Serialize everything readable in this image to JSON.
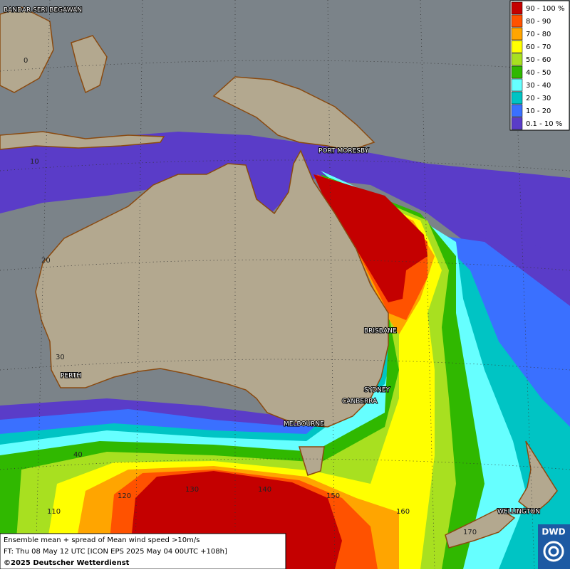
{
  "legend": {
    "entries": [
      {
        "label": "90 - 100 %",
        "color": "#c40000"
      },
      {
        "label": "80 - 90",
        "color": "#ff5200"
      },
      {
        "label": "70 - 80",
        "color": "#ffa500"
      },
      {
        "label": "60 - 70",
        "color": "#ffff00"
      },
      {
        "label": "50 - 60",
        "color": "#a8e020"
      },
      {
        "label": "40 - 50",
        "color": "#30b800"
      },
      {
        "label": "30 - 40",
        "color": "#66ffff"
      },
      {
        "label": "20 - 30",
        "color": "#00c4c4"
      },
      {
        "label": "10 - 20",
        "color": "#3a70ff"
      },
      {
        "label": "0.1 - 10 %",
        "color": "#5a3cc8"
      }
    ]
  },
  "cities": [
    "BANDAR SERI BEGAWAN",
    "PORT MORESBY",
    "BRISBANE",
    "SYDNEY",
    "CANBERRA",
    "MELBOURNE",
    "PERTH",
    "WELLINGTON"
  ],
  "grid_labels": [
    "0",
    "10",
    "20",
    "30",
    "40",
    "110",
    "120",
    "130",
    "140",
    "150",
    "160",
    "170"
  ],
  "footer": {
    "line1": "Ensemble mean + spread of Mean wind speed >10m/s",
    "line2": "FT: Thu 08 May 12 UTC [ICON EPS 2025 May 04 00UTC +108h]",
    "line3": "©2025 Deutscher Wetterdienst"
  },
  "logo": "DWD"
}
